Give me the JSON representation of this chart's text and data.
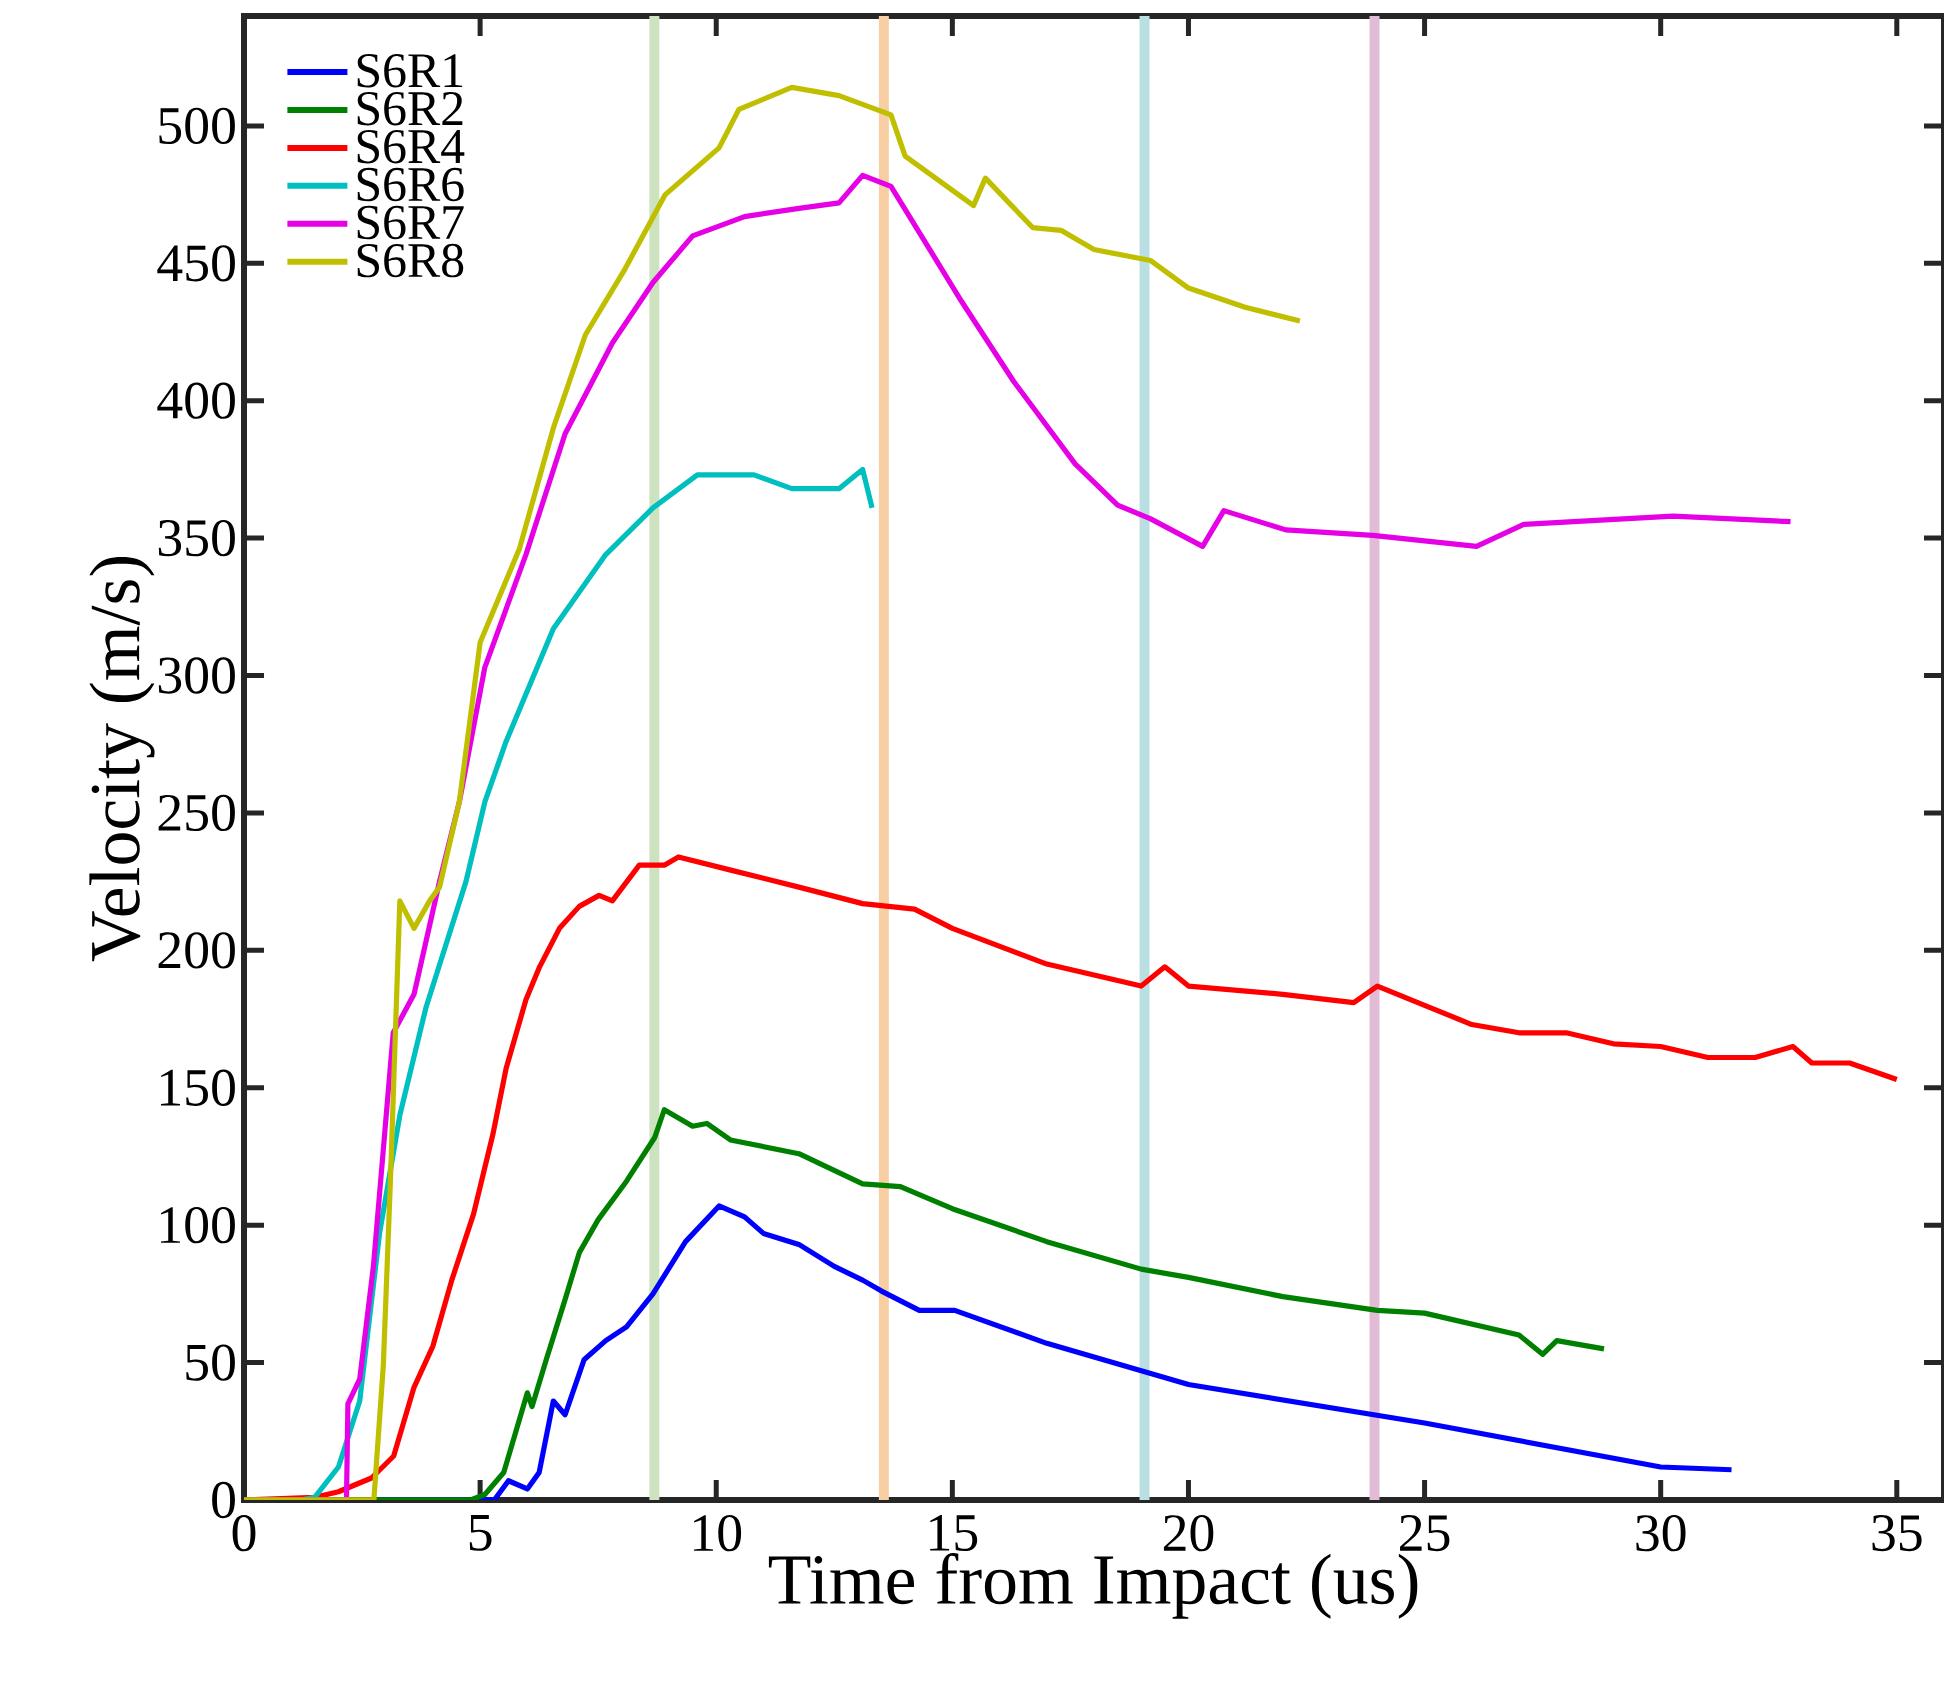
{
  "chart_data": {
    "type": "line",
    "xlabel": "Time from Impact (us)",
    "ylabel": "Velocity (m/s)",
    "xlim": [
      0,
      36
    ],
    "ylim": [
      0,
      540
    ],
    "xticks": [
      0,
      5,
      10,
      15,
      20,
      25,
      30,
      35
    ],
    "yticks": [
      0,
      50,
      100,
      150,
      200,
      250,
      300,
      350,
      400,
      450,
      500
    ],
    "grid": false,
    "legend": "top left",
    "marker": "none",
    "line_style": "solid",
    "series": [
      {
        "name": "S6R1",
        "color": "#0000ff",
        "x": [
          0,
          5.3,
          5.6,
          6.0,
          6.25,
          6.55,
          6.8,
          7.2,
          7.66,
          8.1,
          8.66,
          9.35,
          10.06,
          10.6,
          11.0,
          11.75,
          12.5,
          13.1,
          13.5,
          14.3,
          15.05,
          17.0,
          20.0,
          25.0,
          30.0,
          31.5
        ],
        "values": [
          0,
          0,
          7,
          4,
          10,
          36,
          31,
          51,
          58,
          63,
          75,
          94,
          107,
          103,
          97,
          93,
          85,
          80,
          76,
          69,
          69,
          57,
          42,
          28,
          12,
          11
        ]
      },
      {
        "name": "S6R2",
        "color": "#008000",
        "x": [
          0,
          4.8,
          5.1,
          5.5,
          6.0,
          6.1,
          6.4,
          6.8,
          7.1,
          7.5,
          8.1,
          8.7,
          8.9,
          9.5,
          9.8,
          10.3,
          11.75,
          13.1,
          13.9,
          15,
          17,
          19,
          20,
          22,
          24,
          25,
          27,
          27.5,
          27.8,
          28.8
        ],
        "values": [
          0,
          0,
          2,
          10,
          39,
          34,
          51,
          73,
          90,
          102,
          116,
          132,
          142,
          136,
          137,
          131,
          126,
          115,
          114,
          106,
          94,
          84,
          81,
          74,
          69,
          68,
          60,
          53,
          58,
          55
        ]
      },
      {
        "name": "S6R4",
        "color": "#ff0000",
        "x": [
          0,
          1.5,
          2.0,
          2.7,
          3.17,
          3.6,
          4.0,
          4.4,
          4.86,
          5.27,
          5.55,
          5.97,
          6.26,
          6.68,
          7.1,
          7.52,
          7.8,
          8.37,
          8.9,
          9.2,
          10.35,
          11.75,
          13.1,
          14.2,
          15,
          17,
          19,
          19.5,
          20,
          22,
          23.5,
          24,
          25,
          26,
          27,
          28,
          29,
          30,
          31,
          32,
          32.8,
          33.2,
          34,
          35
        ],
        "values": [
          0,
          1,
          3,
          8,
          16,
          41,
          56,
          80,
          104,
          133,
          157,
          182,
          194,
          208,
          216,
          220,
          218,
          231,
          231,
          234,
          229,
          223,
          217,
          215,
          208,
          195,
          187,
          194,
          187,
          184,
          181,
          187,
          180,
          173,
          170,
          170,
          166,
          165,
          161,
          161,
          165,
          159,
          159,
          153
        ]
      },
      {
        "name": "S6R6",
        "color": "#00bfbf",
        "x": [
          0,
          1.2,
          1.5,
          2.0,
          2.45,
          2.87,
          3.3,
          3.85,
          4.7,
          5.1,
          5.55,
          6.55,
          7.66,
          8.66,
          9.6,
          10.8,
          11.6,
          12.6,
          13.1,
          13.3
        ],
        "values": [
          0,
          0,
          1,
          12,
          36,
          97,
          140,
          179,
          225,
          254,
          276,
          317,
          344,
          361,
          373,
          373,
          368,
          368,
          375,
          361
        ]
      },
      {
        "name": "S6R7",
        "color": "#e600e6",
        "x": [
          0,
          2.0,
          2.17,
          2.2,
          2.45,
          2.74,
          3.16,
          3.6,
          4.14,
          4.56,
          5.1,
          5.97,
          6.8,
          7.8,
          8.66,
          9.5,
          10.6,
          11.75,
          12.6,
          13.1,
          13.7,
          15.2,
          16.3,
          17.6,
          18.5,
          19.2,
          20.3,
          20.75,
          22.06,
          23.9,
          26.1,
          27.1,
          30.26,
          32.75
        ],
        "values": [
          0,
          0,
          0,
          35,
          44,
          85,
          170,
          184,
          225,
          254,
          303,
          344,
          388,
          421,
          443,
          460,
          467,
          470,
          472,
          482,
          478,
          436,
          407,
          377,
          362,
          357,
          347,
          360,
          353,
          351,
          347,
          355,
          358,
          356
        ]
      },
      {
        "name": "S6R8",
        "color": "#bfbf00",
        "x": [
          0,
          2.75,
          2.95,
          3.1,
          3.3,
          3.6,
          3.93,
          4.14,
          4.56,
          5.0,
          5.83,
          6.55,
          7.23,
          8.07,
          8.92,
          10.06,
          10.48,
          11.6,
          12.6,
          13.7,
          14.0,
          15.45,
          15.7,
          16.7,
          17.3,
          18.0,
          19.2,
          20.0,
          21.2,
          22.36
        ],
        "values": [
          0,
          0,
          49,
          116,
          218,
          208,
          218,
          223,
          254,
          312,
          346,
          390,
          424,
          448,
          475,
          492,
          506,
          514,
          511,
          504,
          489,
          471,
          481,
          463,
          462,
          455,
          451,
          441,
          434,
          429
        ]
      }
    ],
    "ref_lines": [
      {
        "axis": "x",
        "value": 8.69,
        "color": "#cde3c0"
      },
      {
        "axis": "x",
        "value": 13.55,
        "color": "#f8cfa3"
      },
      {
        "axis": "x",
        "value": 19.07,
        "color": "#b9dfe3"
      },
      {
        "axis": "x",
        "value": 23.94,
        "color": "#e2bcd6"
      }
    ]
  }
}
